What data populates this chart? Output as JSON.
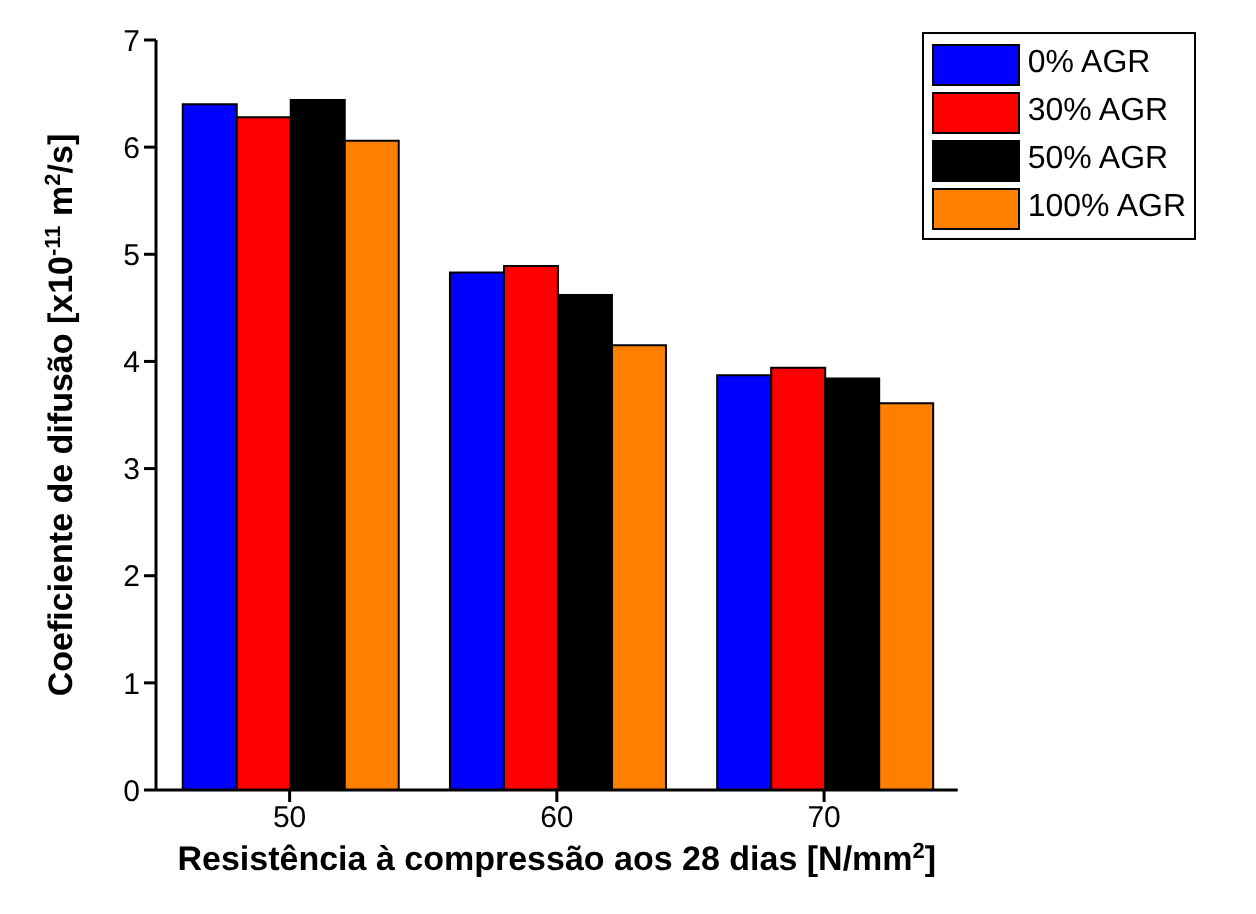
{
  "chart_data": {
    "type": "bar",
    "xlabel": "Resistência à compressão aos 28 dias [N/mm$^{2}$]",
    "ylabel": "Coeficiente de difusão [x10$^{-11}$ m$^{2}$/s]",
    "categories": [
      "50",
      "60",
      "70"
    ],
    "series": [
      {
        "name": "0% AGR",
        "color": "#0000ff",
        "values": [
          6.4,
          4.83,
          3.87
        ]
      },
      {
        "name": "30% AGR",
        "color": "#ff0000",
        "values": [
          6.28,
          4.89,
          3.94
        ]
      },
      {
        "name": "50% AGR",
        "color": "#000000",
        "values": [
          6.44,
          4.62,
          3.84
        ]
      },
      {
        "name": "100% AGR",
        "color": "#ff8000",
        "values": [
          6.06,
          4.15,
          3.61
        ]
      }
    ],
    "ylim": [
      0,
      7
    ],
    "yticks": [
      0,
      1,
      2,
      3,
      4,
      5,
      6,
      7
    ],
    "legend": "top right",
    "grid": false
  }
}
